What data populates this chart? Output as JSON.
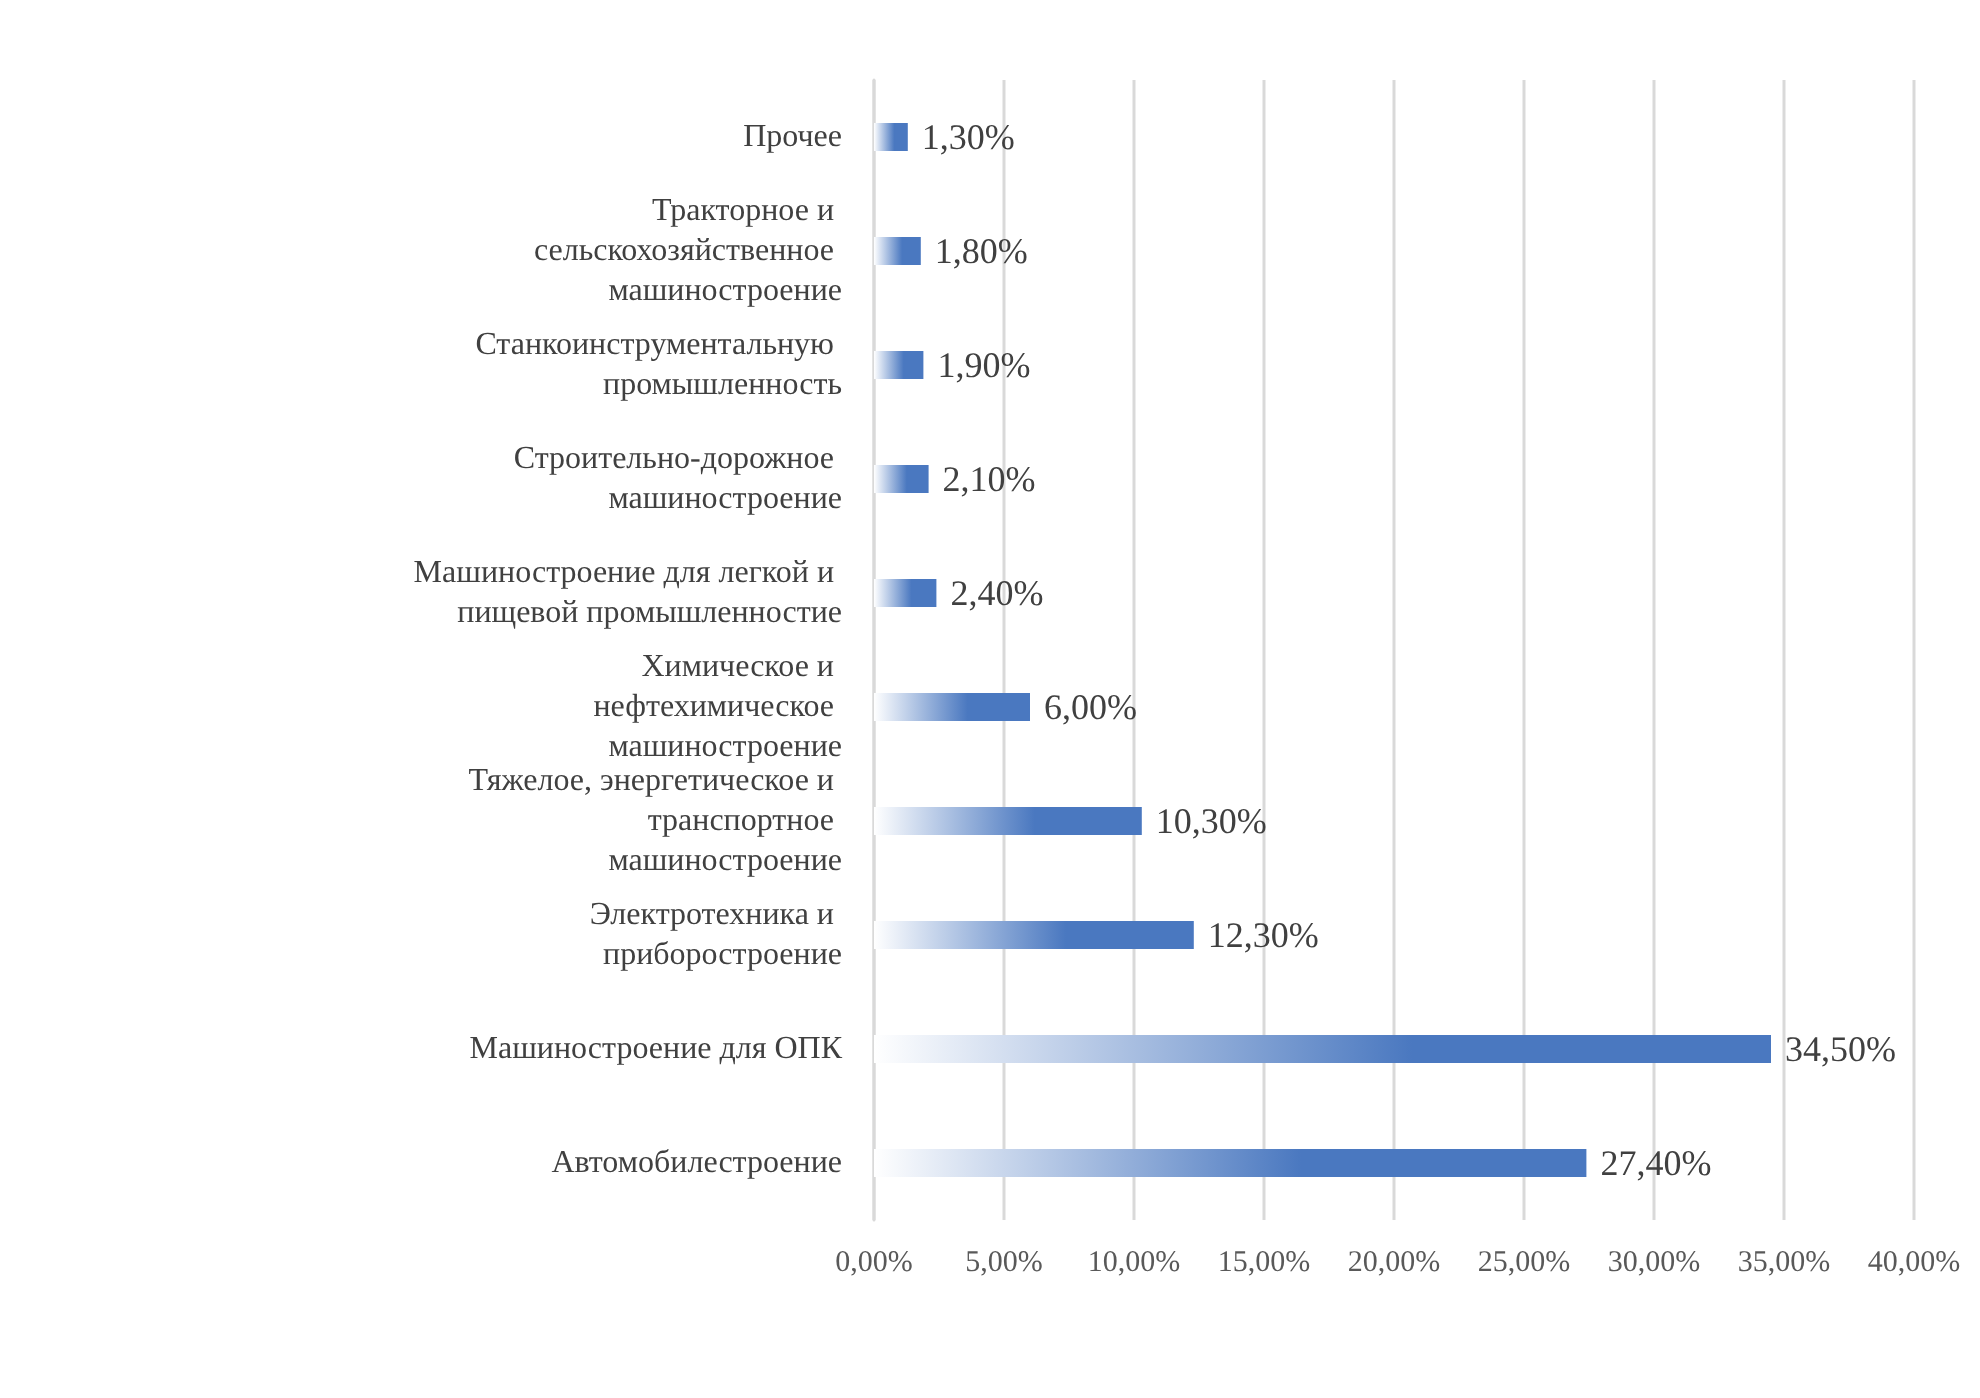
{
  "chart_data": {
    "type": "bar",
    "orientation": "horizontal",
    "categories": [
      "Прочее",
      "Тракторное и сельскохозяйственное машиностроение",
      "Станкоинструментальную промышленность",
      "Строительно-дорожное машиностроение",
      "Машиностроение для легкой и пищевой промышленностие",
      "Химическое и нефтехимическое машиностроение",
      "Тяжелое, энергетическое и транспортное машиностроение",
      "Электротехника и приборостроение",
      "Машиностроение для ОПК",
      "Автомобилестроение"
    ],
    "values": [
      1.3,
      1.8,
      1.9,
      2.1,
      2.4,
      6.0,
      10.3,
      12.3,
      34.5,
      27.4
    ],
    "value_labels": [
      "1,30%",
      "1,80%",
      "1,90%",
      "2,10%",
      "2,40%",
      "6,00%",
      "10,30%",
      "12,30%",
      "34,50%",
      "27,40%"
    ],
    "color": "#4a78c0",
    "xlim": [
      0,
      40
    ],
    "xticks": [
      {
        "value": 0,
        "label": "0,00%"
      },
      {
        "value": 5,
        "label": "5,00%"
      },
      {
        "value": 10,
        "label": "10,00%"
      },
      {
        "value": 15,
        "label": "15,00%"
      },
      {
        "value": 20,
        "label": "20,00%"
      },
      {
        "value": 25,
        "label": "25,00%"
      },
      {
        "value": 30,
        "label": "30,00%"
      },
      {
        "value": 35,
        "label": "35,00%"
      },
      {
        "value": 40,
        "label": "40,00%"
      }
    ],
    "grid": "x"
  }
}
